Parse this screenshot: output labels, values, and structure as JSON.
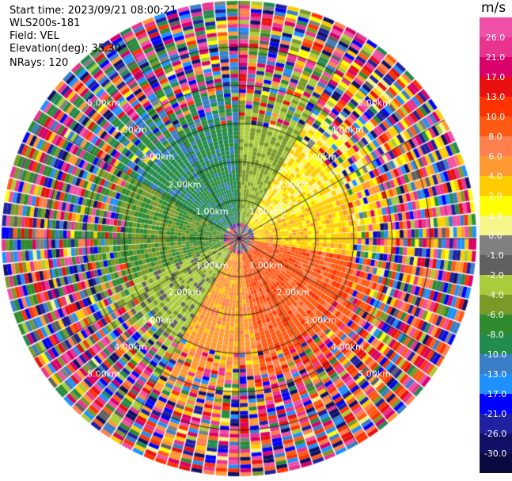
{
  "header": {
    "start_time": "Start time: 2023/09/21 08:00:21",
    "device": "WLS200s-181",
    "field": "Field: VEL",
    "elevation": "Elevation(deg): 35.30",
    "nrays": "NRays: 120"
  },
  "chart_data": {
    "type": "heatmap",
    "projection": "polar-ppi",
    "field": "VEL",
    "units": "m/s",
    "rays": 120,
    "range_km": [
      0,
      6.2
    ],
    "range_rings_km": [
      1,
      2,
      3,
      4,
      5
    ],
    "ring_label_angles_deg": [
      45,
      135,
      225,
      315
    ],
    "ring_labels": [
      "1.00km",
      "2.00km",
      "3.00km",
      "4.00km",
      "5.00km"
    ],
    "colorbar": {
      "title": "m/s",
      "range": [
        -30,
        30
      ],
      "tick_labels": [
        "26.0",
        "21.0",
        "17.0",
        "13.0",
        "10.0",
        "8.0",
        "6.0",
        "4.0",
        "2.0",
        "1.0",
        "0.0",
        "-1.0",
        "-2.0",
        "-4.0",
        "-6.0",
        "-8.0",
        "-10.0",
        "-13.0",
        "-17.0",
        "-21.0",
        "-26.0",
        "-30.0"
      ],
      "colors": [
        "#f04fa8",
        "#e8338f",
        "#d8006a",
        "#e81010",
        "#ff3300",
        "#ff5a14",
        "#ff7f4f",
        "#ff9a32",
        "#ffcc00",
        "#ffff00",
        "#f5f58a",
        "#808080",
        "#606060",
        "#a8cc3a",
        "#7a9a28",
        "#2e8b2e",
        "#228b50",
        "#3a7ec8",
        "#1e90ff",
        "#0000ff",
        "#2020a0",
        "#101066",
        "#0a0a40"
      ]
    },
    "pattern": {
      "near_range_km": 3.0,
      "sectors": [
        {
          "az_from": 0,
          "az_to": 30,
          "value": -4.0
        },
        {
          "az_from": 30,
          "az_to": 65,
          "value": 1.5
        },
        {
          "az_from": 65,
          "az_to": 100,
          "value": 3.0
        },
        {
          "az_from": 100,
          "az_to": 170,
          "value": 9.0
        },
        {
          "az_from": 170,
          "az_to": 210,
          "value": 5.0
        },
        {
          "az_from": 210,
          "az_to": 250,
          "value": -3.0
        },
        {
          "az_from": 250,
          "az_to": 300,
          "value": -6.0
        },
        {
          "az_from": 300,
          "az_to": 360,
          "value": -9.0
        }
      ]
    }
  }
}
